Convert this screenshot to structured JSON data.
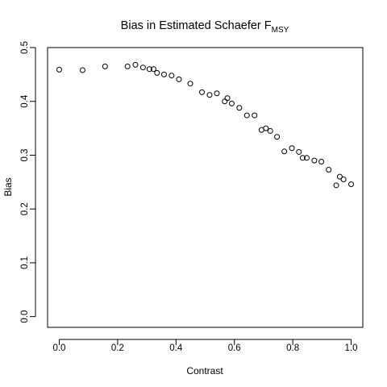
{
  "chart_data": {
    "type": "scatter",
    "title": "Bias in Estimated Schaefer F",
    "title_subscript": "MSY",
    "xlabel": "Contrast",
    "ylabel": "Bias",
    "xlim": [
      -0.04,
      1.04
    ],
    "ylim": [
      -0.02,
      0.5
    ],
    "x_ticks": [
      0.0,
      0.2,
      0.4,
      0.6,
      0.8,
      1.0
    ],
    "x_tick_labels": [
      "0.0",
      "0.2",
      "0.4",
      "0.6",
      "0.8",
      "1.0"
    ],
    "y_ticks": [
      0.0,
      0.1,
      0.2,
      0.3,
      0.4,
      0.5
    ],
    "y_tick_labels": [
      "0.0",
      "0.1",
      "0.2",
      "0.3",
      "0.4",
      "0.5"
    ],
    "grid": false,
    "legend": "none",
    "marker": "open-circle",
    "points": [
      {
        "x": 0.0,
        "y": 0.459
      },
      {
        "x": 0.08,
        "y": 0.458
      },
      {
        "x": 0.157,
        "y": 0.465
      },
      {
        "x": 0.234,
        "y": 0.465
      },
      {
        "x": 0.261,
        "y": 0.468
      },
      {
        "x": 0.287,
        "y": 0.463
      },
      {
        "x": 0.309,
        "y": 0.46
      },
      {
        "x": 0.323,
        "y": 0.46
      },
      {
        "x": 0.335,
        "y": 0.453
      },
      {
        "x": 0.359,
        "y": 0.45
      },
      {
        "x": 0.385,
        "y": 0.448
      },
      {
        "x": 0.41,
        "y": 0.441
      },
      {
        "x": 0.449,
        "y": 0.433
      },
      {
        "x": 0.489,
        "y": 0.417
      },
      {
        "x": 0.515,
        "y": 0.412
      },
      {
        "x": 0.54,
        "y": 0.415
      },
      {
        "x": 0.567,
        "y": 0.4
      },
      {
        "x": 0.576,
        "y": 0.406
      },
      {
        "x": 0.591,
        "y": 0.396
      },
      {
        "x": 0.617,
        "y": 0.388
      },
      {
        "x": 0.643,
        "y": 0.374
      },
      {
        "x": 0.669,
        "y": 0.374
      },
      {
        "x": 0.693,
        "y": 0.347
      },
      {
        "x": 0.708,
        "y": 0.35
      },
      {
        "x": 0.723,
        "y": 0.345
      },
      {
        "x": 0.746,
        "y": 0.334
      },
      {
        "x": 0.771,
        "y": 0.307
      },
      {
        "x": 0.797,
        "y": 0.313
      },
      {
        "x": 0.821,
        "y": 0.306
      },
      {
        "x": 0.834,
        "y": 0.295
      },
      {
        "x": 0.848,
        "y": 0.295
      },
      {
        "x": 0.874,
        "y": 0.29
      },
      {
        "x": 0.898,
        "y": 0.288
      },
      {
        "x": 0.923,
        "y": 0.273
      },
      {
        "x": 0.949,
        "y": 0.244
      },
      {
        "x": 0.961,
        "y": 0.26
      },
      {
        "x": 0.974,
        "y": 0.255
      },
      {
        "x": 1.0,
        "y": 0.246
      }
    ],
    "colors": {
      "background": "#ffffff",
      "axis": "#000000",
      "marker_stroke": "#000000"
    }
  }
}
